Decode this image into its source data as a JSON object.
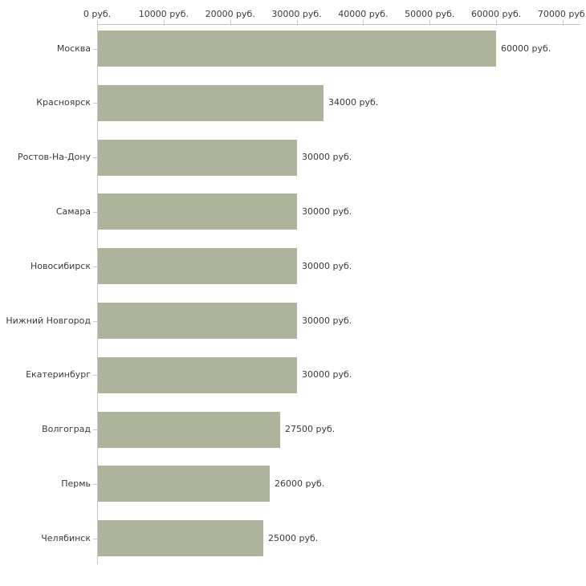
{
  "chart_data": {
    "type": "bar",
    "orientation": "horizontal",
    "title": "",
    "xlabel": "",
    "ylabel": "",
    "unit": "руб.",
    "categories": [
      "Москва",
      "Красноярск",
      "Ростов-На-Дону",
      "Самара",
      "Новосибирск",
      "Нижний Новгород",
      "Екатеринбург",
      "Волгоград",
      "Пермь",
      "Челябинск"
    ],
    "values": [
      60000,
      34000,
      30000,
      30000,
      30000,
      30000,
      30000,
      27500,
      26000,
      25000
    ],
    "value_labels": [
      "60000 руб.",
      "34000 руб.",
      "30000 руб.",
      "30000 руб.",
      "30000 руб.",
      "30000 руб.",
      "30000 руб.",
      "27500 руб.",
      "26000 руб.",
      "25000 руб."
    ],
    "axis": {
      "position": "top",
      "min": 0,
      "max": 70000,
      "ticks": [
        0,
        10000,
        20000,
        30000,
        40000,
        50000,
        60000,
        70000
      ],
      "tick_labels": [
        "0 руб.",
        "10000 руб.",
        "20000 руб.",
        "30000 руб.",
        "40000 руб.",
        "50000 руб.",
        "60000 руб.",
        "70000 руб."
      ]
    },
    "grid": false,
    "legend": false,
    "colors": {
      "bar": "#aeb49b",
      "axis_line": "#c6c6c6",
      "tick": "#cdcda3",
      "text": "#3a3a3a",
      "background": "#ffffff"
    }
  }
}
